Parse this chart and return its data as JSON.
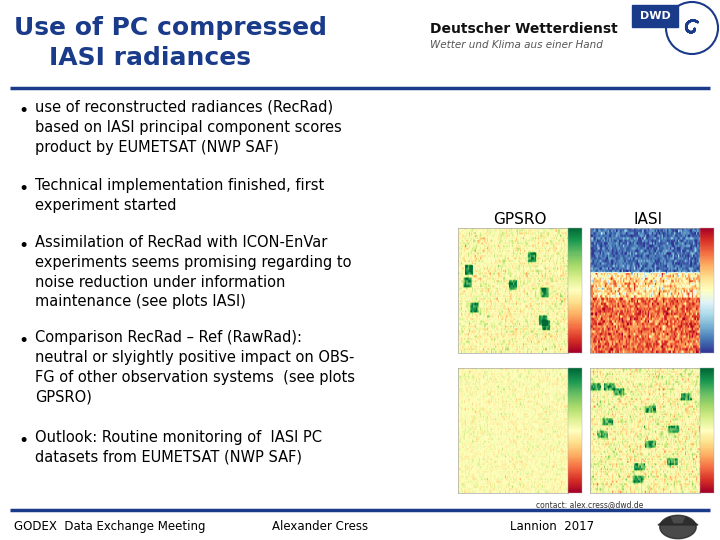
{
  "title_line1": "Use of PC compressed",
  "title_line2": "    IASI radiances",
  "title_color": "#1a3a8a",
  "title_fontsize": 18,
  "bg_color": "#ffffff",
  "header_line_color": "#1a3a8a",
  "footer_line_color": "#1a3a8a",
  "bullet_points": [
    "use of reconstructed radiances (RecRad)\nbased on IASI principal component scores\nproduct by EUMETSAT (NWP SAF)",
    "Technical implementation finished, first\nexperiment started",
    "Assimilation of RecRad with ICON-EnVar\nexperiments seems promising regarding to\nnoise reduction under information\nmaintenance (see plots IASI)",
    "Comparison RecRad – Ref (RawRad):\nneutral or slyightly positive impact on OBS-\nFG of other observation systems  (see plots\nGPSRO)",
    "Outlook: Routine monitoring of  IASI PC\ndatasets from EUMETSAT (NWP SAF)"
  ],
  "bullet_fontsize": 10.5,
  "bullet_color": "#000000",
  "footer_left": "GODEX  Data Exchange Meeting",
  "footer_center": "Alexander Cress",
  "footer_right": "Lannion  2017",
  "footer_fontsize": 8.5,
  "label_gpsro": "GPSRO",
  "label_iasi": "IASI",
  "label_fontsize": 11,
  "dwd_text1": "Deutscher Wetterdienst",
  "dwd_text2": "Wetter und Klima aus einer Hand",
  "dwd_text1_fontsize": 10,
  "dwd_text2_fontsize": 7.5
}
